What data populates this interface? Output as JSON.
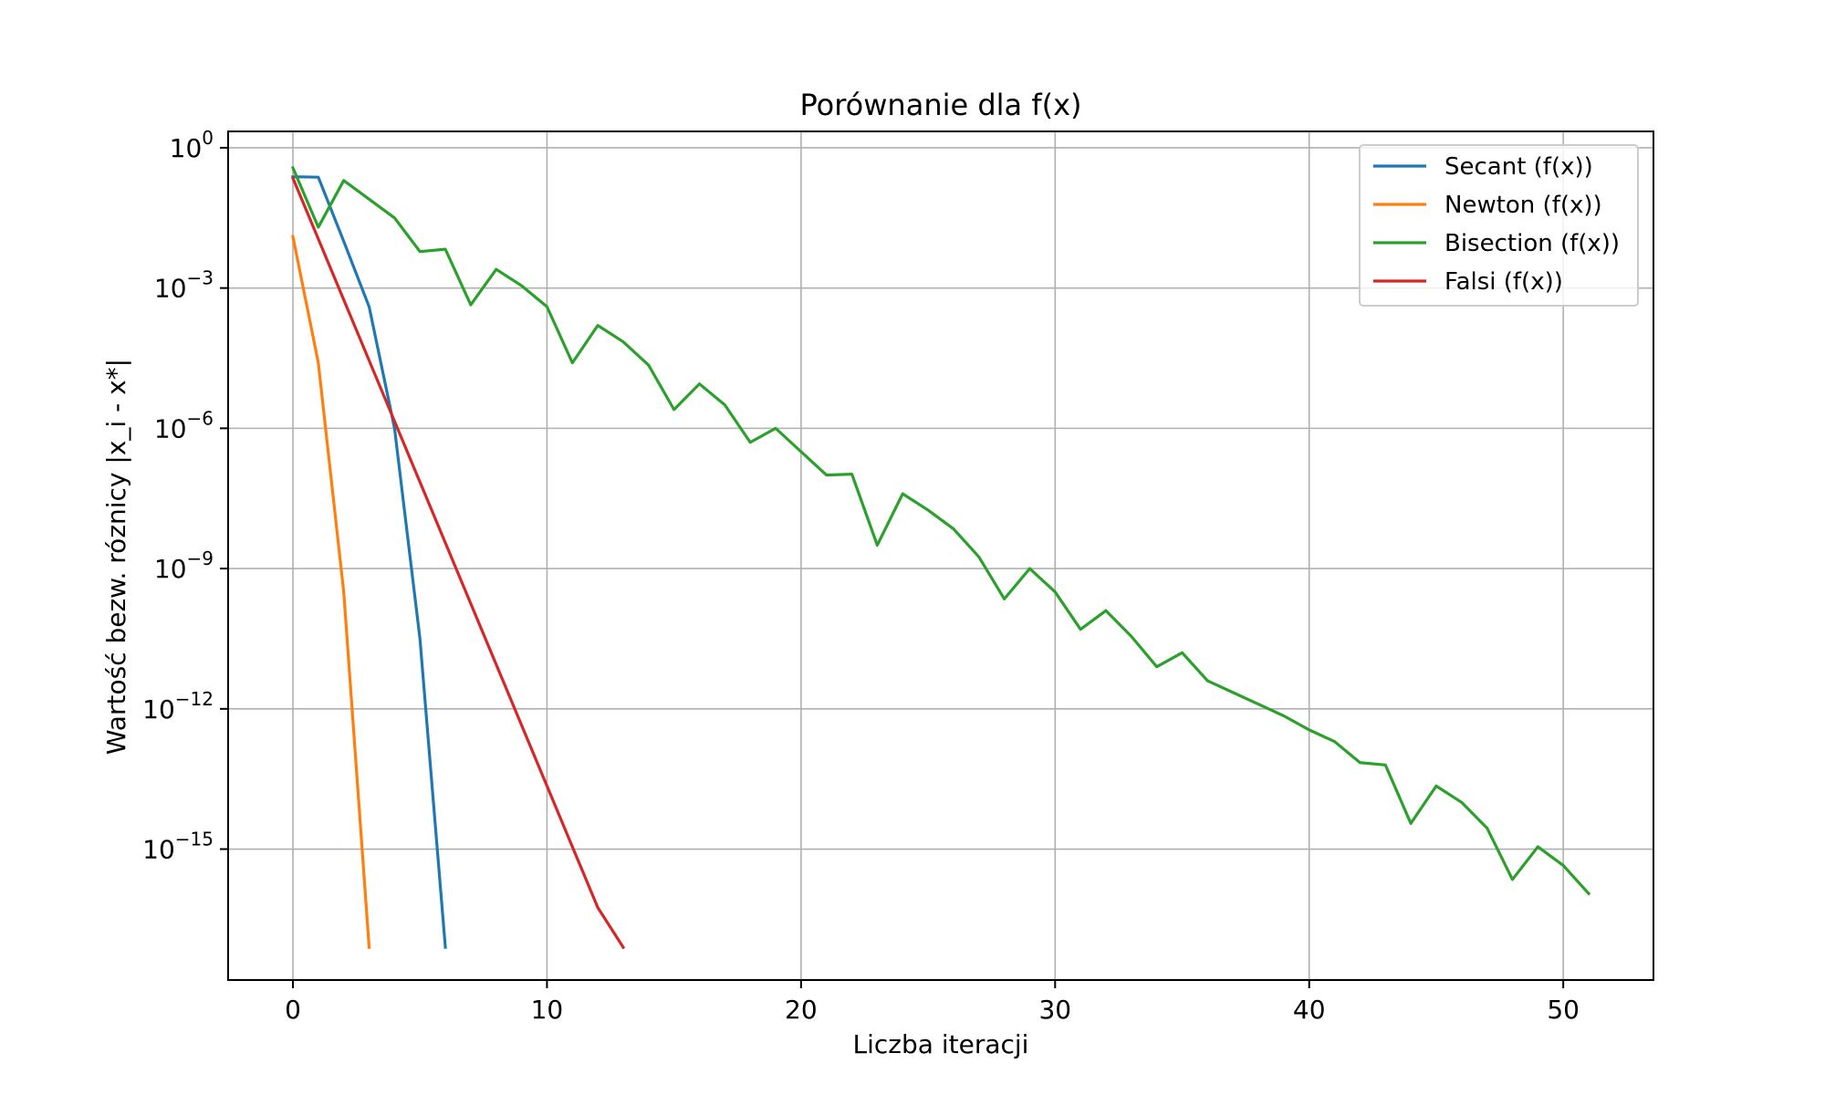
{
  "chart_data": {
    "type": "line",
    "title": "Porównanie dla f(x)",
    "xlabel": "Liczba iteracji",
    "ylabel": "Wartość bezw. róznicy |x_i - x*|",
    "xlim": [
      -2.55,
      53.55
    ],
    "ylim_log10": [
      -17.8,
      0.35
    ],
    "yscale": "log",
    "grid": true,
    "legend_position": "top-right",
    "x_ticks": [
      0,
      10,
      20,
      30,
      40,
      50
    ],
    "x_tick_labels": [
      "0",
      "10",
      "20",
      "30",
      "40",
      "50"
    ],
    "y_ticks_log10": [
      0,
      -3,
      -6,
      -9,
      -12,
      -15
    ],
    "y_tick_base": "10",
    "y_tick_exponents": [
      "0",
      "−3",
      "−6",
      "−9",
      "−12",
      "−15"
    ],
    "series": [
      {
        "name": "Secant (f(x))",
        "color": "#1f77b4",
        "x": [
          0,
          1,
          2,
          3,
          4,
          5,
          6
        ],
        "log10_y": [
          -0.62,
          -0.63,
          -2.0,
          -3.4,
          -6.0,
          -10.5,
          -17.1
        ]
      },
      {
        "name": "Newton (f(x))",
        "color": "#ff7f0e",
        "x": [
          0,
          1,
          2,
          3
        ],
        "log10_y": [
          -1.9,
          -4.6,
          -9.5,
          -17.1
        ]
      },
      {
        "name": "Bisection (f(x))",
        "color": "#2ca02c",
        "x": [
          0,
          1,
          2,
          3,
          4,
          5,
          6,
          7,
          8,
          9,
          10,
          11,
          12,
          13,
          14,
          15,
          16,
          17,
          18,
          19,
          20,
          21,
          22,
          23,
          24,
          25,
          26,
          27,
          28,
          29,
          30,
          31,
          32,
          33,
          34,
          35,
          36,
          37,
          38,
          39,
          40,
          41,
          42,
          43,
          44,
          45,
          46,
          47,
          48,
          49,
          50,
          51
        ],
        "log10_y": [
          -0.43,
          -1.7,
          -0.7,
          -1.1,
          -1.5,
          -2.22,
          -2.17,
          -3.36,
          -2.6,
          -2.95,
          -3.4,
          -4.6,
          -3.8,
          -4.15,
          -4.65,
          -5.6,
          -5.05,
          -5.5,
          -6.3,
          -6.0,
          -6.5,
          -7.0,
          -6.98,
          -8.5,
          -7.4,
          -7.75,
          -8.15,
          -8.75,
          -9.65,
          -9.0,
          -9.5,
          -10.3,
          -9.9,
          -10.45,
          -11.1,
          -10.8,
          -11.4,
          -11.65,
          -11.9,
          -12.15,
          -12.45,
          -12.7,
          -13.15,
          -13.2,
          -14.45,
          -13.65,
          -14.0,
          -14.55,
          -15.65,
          -14.95,
          -15.35,
          -15.95
        ]
      },
      {
        "name": "Falsi (f(x))",
        "color": "#d62728",
        "x": [
          0,
          1,
          2,
          3,
          4,
          5,
          6,
          7,
          8,
          9,
          10,
          11,
          12,
          13
        ],
        "log10_y": [
          -0.65,
          -1.95,
          -3.25,
          -4.55,
          -5.85,
          -7.15,
          -8.45,
          -9.75,
          -11.05,
          -12.35,
          -13.65,
          -14.95,
          -16.25,
          -17.1
        ]
      }
    ]
  }
}
